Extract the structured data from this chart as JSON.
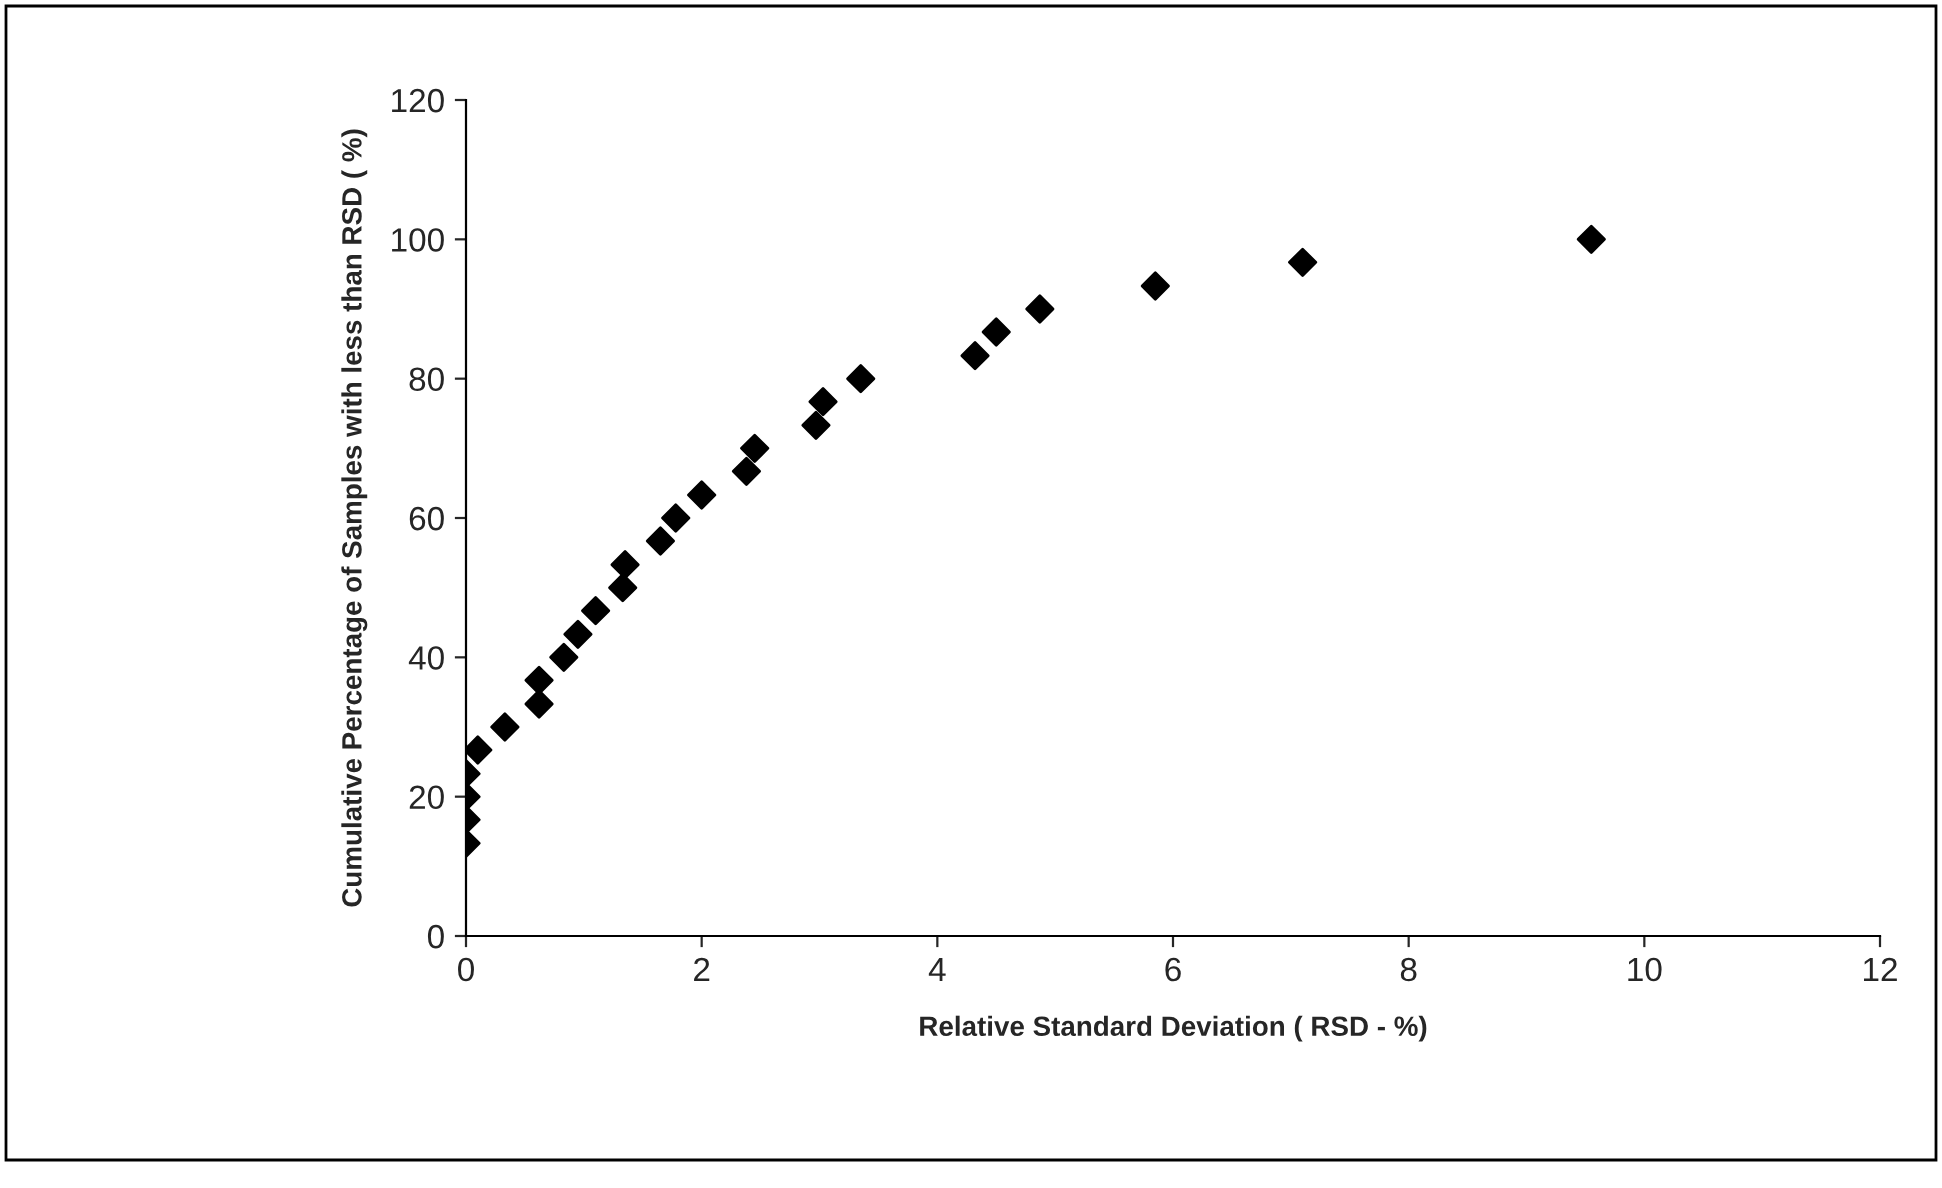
{
  "chart_data": {
    "type": "scatter",
    "xlabel": "Relative Standard Deviation ( RSD - %)",
    "ylabel": "Cumulative Percentage of Samples with less than RSD ( %)",
    "series": [
      {
        "color": "#000000",
        "x": [
          0,
          0,
          0,
          0,
          0.1,
          0.33,
          0.62,
          0.62,
          0.83,
          0.95,
          1.1,
          1.33,
          1.35,
          1.65,
          1.78,
          2.0,
          2.38,
          2.45,
          2.97,
          3.03,
          3.35,
          4.32,
          4.5,
          4.87,
          5.85,
          7.1,
          9.55
        ],
        "values": [
          13.3,
          16.7,
          20,
          23.3,
          26.7,
          30,
          33.3,
          36.7,
          40,
          43.3,
          46.7,
          50,
          53.3,
          56.7,
          60,
          63.3,
          66.7,
          70,
          73.3,
          76.7,
          80,
          83.3,
          86.7,
          90,
          93.3,
          96.7,
          100
        ]
      }
    ],
    "xlim": [
      0,
      12
    ],
    "xticks": [
      0,
      2,
      4,
      6,
      8,
      10,
      12
    ],
    "ylim": [
      0,
      120
    ],
    "yticks": [
      0,
      20,
      40,
      60,
      80,
      100,
      120
    ],
    "marker": "diamond",
    "grid": false,
    "legend": false
  }
}
